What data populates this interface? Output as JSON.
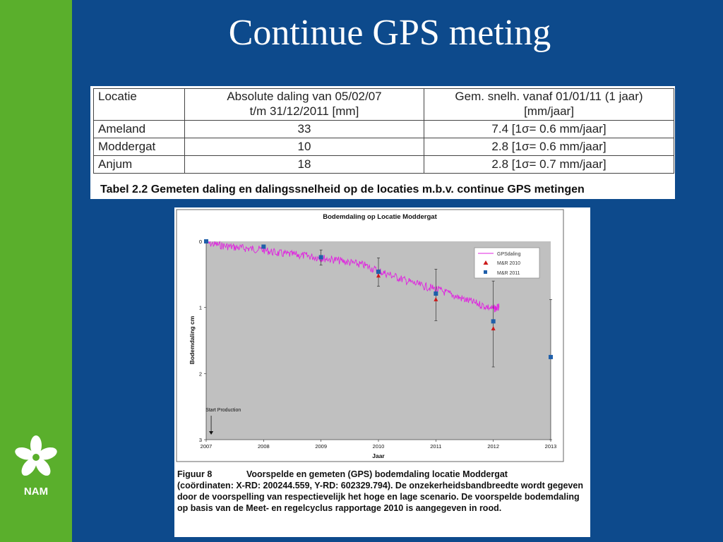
{
  "slide": {
    "title": "Continue GPS meting",
    "brand": "NAM"
  },
  "table": {
    "headers": [
      "Locatie",
      "Absolute daling van 05/02/07\nt/m 31/12/2011 [mm]",
      "Gem. snelh. vanaf 01/01/11 (1 jaar)\n[mm/jaar]"
    ],
    "header_lines": [
      [
        "Locatie"
      ],
      [
        "Absolute daling van 05/02/07",
        "t/m 31/12/2011 [mm]"
      ],
      [
        "Gem. snelh. vanaf 01/01/11 (1 jaar)",
        "[mm/jaar]"
      ]
    ],
    "rows": [
      [
        "Ameland",
        "33",
        "7.4  [1σ= 0.6 mm/jaar]"
      ],
      [
        "Moddergat",
        "10",
        "2.8  [1σ= 0.6 mm/jaar]"
      ],
      [
        "Anjum",
        "18",
        "2.8  [1σ= 0.7 mm/jaar]"
      ]
    ],
    "caption": "Tabel 2.2 Gemeten daling en dalingssnelheid op de locaties m.b.v. continue GPS metingen"
  },
  "figure": {
    "label": "Figuur 8",
    "caption_first": "Voorspelde en gemeten (GPS) bodemdaling locatie Moddergat",
    "caption_rest": "(coördinaten: X-RD: 200244.559, Y-RD: 602329.794). De onzekerheidsbandbreedte wordt gegeven door de voorspelling van respectievelijk het hoge en lage scenario. De voorspelde bodemdaling op basis van de Meet- en regelcyclus rapportage 2010 is aangegeven in rood."
  },
  "chart_data": {
    "type": "line",
    "title": "Bodemdaling op Locatie Moddergat",
    "xlabel": "Jaar",
    "ylabel": "Bodemdaling cm",
    "xlim": [
      2007,
      2013
    ],
    "ylim": [
      0,
      3
    ],
    "y_inverted": true,
    "x_ticks": [
      2007,
      2008,
      2009,
      2010,
      2011,
      2012,
      2013
    ],
    "y_ticks": [
      0,
      1,
      2,
      3
    ],
    "legend_position": "top-right",
    "annotation": {
      "text": "Start Production",
      "x": 2007.05,
      "y": 3.0
    },
    "colors": {
      "gps": "#e020e0",
      "mr2010": "#cc1a1a",
      "mr2011": "#1f5faa",
      "plot_bg": "#c0c0c0"
    },
    "series": [
      {
        "name": "GPSdaling",
        "kind": "line",
        "x": [
          2007.0,
          2007.25,
          2007.5,
          2007.75,
          2008.0,
          2008.25,
          2008.5,
          2008.75,
          2009.0,
          2009.25,
          2009.5,
          2009.75,
          2010.0,
          2010.25,
          2010.5,
          2010.75,
          2011.0,
          2011.25,
          2011.5,
          2011.75,
          2012.0,
          2012.1
        ],
        "y": [
          0.02,
          0.06,
          0.09,
          0.11,
          0.13,
          0.18,
          0.2,
          0.22,
          0.25,
          0.28,
          0.32,
          0.36,
          0.45,
          0.52,
          0.6,
          0.67,
          0.72,
          0.8,
          0.88,
          0.95,
          1.02,
          1.0
        ]
      },
      {
        "name": "M&R 2010",
        "kind": "marker",
        "marker": "triangle",
        "x": [
          2010.0,
          2011.0,
          2012.0
        ],
        "y": [
          0.52,
          0.88,
          1.32
        ]
      },
      {
        "name": "M&R 2011",
        "kind": "marker",
        "marker": "square",
        "x": [
          2007.0,
          2008.0,
          2009.0,
          2010.0,
          2011.0,
          2012.0,
          2013.0
        ],
        "y": [
          0.0,
          0.08,
          0.24,
          0.46,
          0.79,
          1.21,
          1.75
        ],
        "err_low": [
          0.0,
          0.0,
          0.13,
          0.25,
          0.42,
          0.6,
          0.88
        ],
        "err_high": [
          0.0,
          0.0,
          0.36,
          0.68,
          1.2,
          1.9,
          3.0
        ]
      }
    ]
  }
}
